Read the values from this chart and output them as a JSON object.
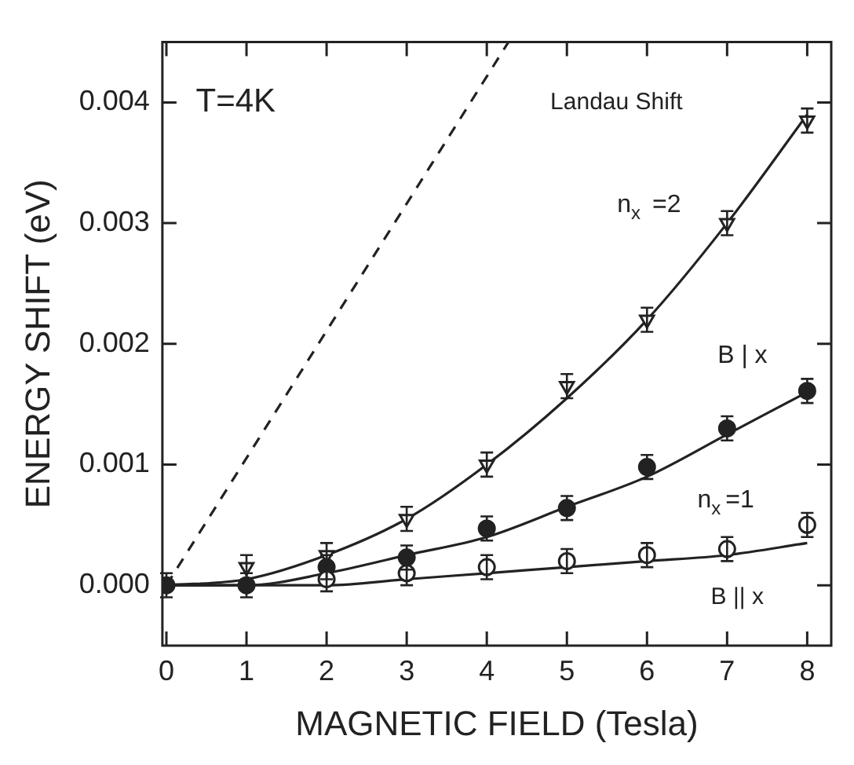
{
  "chart_data": {
    "type": "scatter",
    "xlabel": "MAGNETIC FIELD (Tesla)",
    "ylabel": "ENERGY SHIFT (eV)",
    "x": [
      0,
      1,
      2,
      3,
      4,
      5,
      6,
      7,
      8
    ],
    "xlim": [
      -0.05,
      8.3
    ],
    "xticks": [
      0,
      1,
      2,
      3,
      4,
      5,
      6,
      7,
      8
    ],
    "ylim": [
      -0.0005,
      0.0045
    ],
    "yticks": [
      {
        "value": 0,
        "label": "0.000"
      },
      {
        "value": 0.001,
        "label": "0.001"
      },
      {
        "value": 0.002,
        "label": "0.002"
      },
      {
        "value": 0.003,
        "label": "0.003"
      },
      {
        "value": 0.004,
        "label": "0.004"
      }
    ],
    "grid": false,
    "legend": false,
    "series": [
      {
        "type": "line",
        "line_style": "dashed",
        "marker": "none",
        "color": "#222222",
        "x": [
          0,
          4.27
        ],
        "values": [
          0,
          0.0045
        ]
      },
      {
        "type": "line",
        "line_style": "solid",
        "marker": "none",
        "color": "#222222",
        "values": [
          0,
          5e-05,
          0.00025,
          0.00055,
          0.001,
          0.00155,
          0.0022,
          0.003,
          0.0039
        ]
      },
      {
        "type": "line",
        "line_style": "solid",
        "marker": "none",
        "color": "#222222",
        "values": [
          0,
          0,
          0.0001,
          0.00025,
          0.0004,
          0.00065,
          0.0009,
          0.00125,
          0.0016
        ]
      },
      {
        "type": "line",
        "line_style": "solid",
        "marker": "none",
        "color": "#222222",
        "values": [
          0,
          0,
          0,
          5e-05,
          0.0001,
          0.00015,
          0.0002,
          0.00025,
          0.00035
        ]
      },
      {
        "type": "scatter",
        "marker": "triangle",
        "color": "#ffffff",
        "values": [
          null,
          0.00015,
          0.00025,
          0.00055,
          0.001,
          0.00165,
          0.0022,
          0.003,
          0.00385
        ],
        "errors": [
          null,
          0.0001,
          0.0001,
          0.0001,
          0.0001,
          0.0001,
          0.0001,
          0.0001,
          0.0001
        ]
      },
      {
        "type": "scatter",
        "marker": "circle",
        "color": "#222222",
        "values": [
          0,
          0,
          0.00015,
          0.00023,
          0.00047,
          0.00064,
          0.00098,
          0.0013,
          0.00161
        ],
        "errors": [
          0.0001,
          0.0001,
          0.0001,
          0.0001,
          0.0001,
          0.0001,
          0.0001,
          0.0001,
          0.0001
        ]
      },
      {
        "type": "scatter",
        "marker": "circle",
        "color": "#ffffff",
        "values": [
          null,
          null,
          5e-05,
          0.0001,
          0.00015,
          0.0002,
          0.00025,
          0.0003,
          0.0005
        ],
        "errors": [
          null,
          null,
          0.0001,
          0.0001,
          0.0001,
          0.0001,
          0.0001,
          0.0001,
          0.0001
        ]
      }
    ],
    "annotations": [
      "T=4K",
      "Landau Shift",
      "n$_{x}$ =2",
      "B | x",
      "n$_{x}$=1",
      "B || x"
    ]
  }
}
